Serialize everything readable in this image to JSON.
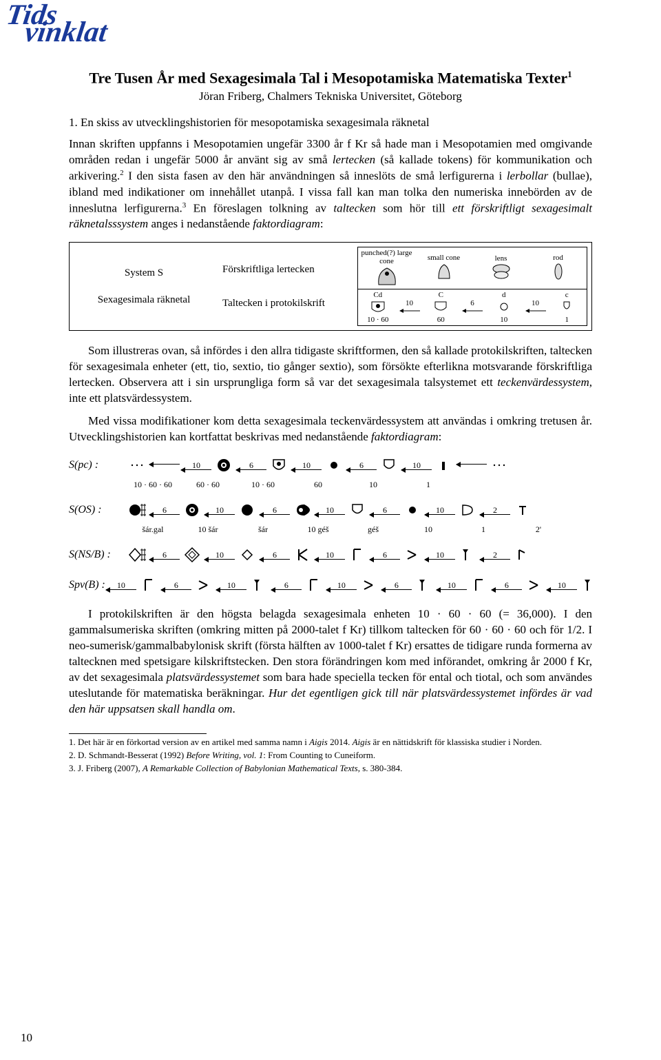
{
  "logo": {
    "line1": "Tids",
    "line2": "vinklat",
    "color": "#1a3a9a"
  },
  "title": "Tre Tusen År med Sexagesimala Tal i Mesopotamiska Matematiska Texter",
  "title_footnote_mark": "1",
  "author": "Jöran Friberg, Chalmers Tekniska Universitet, Göteborg",
  "section1_number": "1.",
  "section1_title": "En skiss av utvecklingshistorien för mesopotamiska sexagesimala räknetal",
  "para1_a": "Innan skriften uppfanns i Mesopotamien ungefär 3300 år f Kr så hade man i Mesopotamien med omgivande områden redan i ungefär 5000 år använt sig av små ",
  "para1_b_it": "lertecken",
  "para1_c": " (så kallade tokens) för kommunikation och arkivering.",
  "para1_fn2": "2",
  "para1_d": " I den sista fasen av den här användningen så inneslöts de små lerfigurerna i ",
  "para1_e_it": "lerbollar",
  "para1_f": " (bullae), ibland med indikationer om innehållet utanpå. I vissa fall kan man tolka den numeriska innebörden av de inneslutna lerfigurerna.",
  "para1_fn3": "3",
  "para1_g": " En föreslagen tolkning av ",
  "para1_h_it": "taltecken",
  "para1_i": " som hör till ",
  "para1_j_it": "ett förskriftligt sexagesimalt räknetalsssystem",
  "para1_k": " anges i nedanstående ",
  "para1_l_it": "faktordiagram",
  "para1_m": ":",
  "sysbox": {
    "left_label": "System S",
    "left_sub": "Sexagesimala räknetal",
    "mid_top": "Förskriftliga lertecken",
    "mid_bot": "Taltecken i protokilskrift",
    "top_headers": [
      "punched(?) large cone",
      "small cone",
      "lens",
      "rod"
    ],
    "proto_headers": [
      "Cd",
      "C",
      "d",
      "c"
    ],
    "proto_factors_top": [
      "10",
      "6",
      "10"
    ],
    "proto_bottom": [
      "10 · 60",
      "60",
      "10",
      "1"
    ]
  },
  "para2": "Som illustreras ovan, så infördes i den allra tidigaste skriftformen, den så kallade protokilskriften, taltecken för sexagesimala enheter (ett, tio, sextio, tio gånger sextio), som försökte efterlikna motsvarande förskriftliga lertecken. Observera att i sin ursprungliga form så var det sexagesimala talsystemet ett ",
  "para2_it": "teckenvärdessystem",
  "para2_b": ", inte ett platsvärdessystem.",
  "para3_a": "Med vissa modifikationer kom detta sexagesimala teckenvärdessystem att användas i omkring tretusen år. Utvecklingshistorien kan kortfattat beskrivas med nedanstående ",
  "para3_it": "faktordiagram",
  "para3_b": ":",
  "chart": {
    "rows": [
      {
        "label": "S(pc) :",
        "leading_dots": true,
        "segments": [
          {
            "f": "10",
            "sym": "bullseye"
          },
          {
            "f": "6",
            "sym": "dot-in-cup"
          },
          {
            "f": "10",
            "sym": "small-dot"
          },
          {
            "f": "6",
            "sym": "cup"
          },
          {
            "f": "10",
            "sym": "short-bar"
          }
        ],
        "trailing": {
          "f": "",
          "sym": "dots"
        },
        "sub": [
          "10 · 60 · 60",
          "60 · 60",
          "10 · 60",
          "60",
          "10",
          "1"
        ]
      },
      {
        "label": "S(OS) :",
        "segments": [
          {
            "f": "",
            "sym": "black-grid"
          },
          {
            "f": "6",
            "sym": "bullseye"
          },
          {
            "f": "10",
            "sym": "black-dot"
          },
          {
            "f": "6",
            "sym": "black-drop"
          },
          {
            "f": "10",
            "sym": "cup-white"
          },
          {
            "f": "6",
            "sym": "small-dot"
          },
          {
            "f": "10",
            "sym": "open-d"
          },
          {
            "f": "2",
            "sym": "small-mark"
          }
        ],
        "sub": [
          "šár.gal",
          "10 šár",
          "šár",
          "10 géš",
          "géš",
          "10",
          "1",
          "2'"
        ]
      },
      {
        "label": "S(NS/B) :",
        "segments": [
          {
            "f": "",
            "sym": "diamond-grid"
          },
          {
            "f": "6",
            "sym": "diamond"
          },
          {
            "f": "10",
            "sym": "diamond-small"
          },
          {
            "f": "6",
            "sym": "k-mark"
          },
          {
            "f": "10",
            "sym": "hook-up"
          },
          {
            "f": "6",
            "sym": "angle"
          },
          {
            "f": "10",
            "sym": "hook"
          },
          {
            "f": "2",
            "sym": "tick"
          }
        ]
      },
      {
        "label": "Spv(B) :",
        "segments": [
          {
            "f": "10",
            "sym": "hook-up"
          },
          {
            "f": "6",
            "sym": "angle"
          },
          {
            "f": "10",
            "sym": "hook"
          },
          {
            "f": "6",
            "sym": "hook-up"
          },
          {
            "f": "10",
            "sym": "angle"
          },
          {
            "f": "6",
            "sym": "hook"
          },
          {
            "f": "10",
            "sym": "hook-up"
          },
          {
            "f": "6",
            "sym": "angle"
          },
          {
            "f": "10",
            "sym": "hook"
          }
        ]
      }
    ]
  },
  "para4_a": "I protokilskriften är den högsta belagda sexagesimala enheten 10 · 60 · 60 (= 36,000). I den gammalsumeriska skriften (omkring mitten på 2000-talet f Kr) tillkom taltecken för 60 · 60 · 60 och för 1/2. I neo-sumerisk/gammalbabylonisk skrift (första hälften av 1000-talet f Kr) ersattes de tidigare runda formerna av taltecknen med spetsigare kilskriftstecken. Den stora förändringen kom med införandet, omkring år 2000 f Kr, av det sexagesimala ",
  "para4_it": "platsvärdessystemet",
  "para4_b": " som bara hade speciella tecken för ental och tiotal, och som användes uteslutande för matematiska beräkningar. ",
  "para4_it2": "Hur det egentligen gick till när platsvärdessystemet infördes är vad den här uppsatsen skall handla om",
  "para4_c": ".",
  "footnotes": [
    "1. Det här är en förkortad version av en artikel med samma namn i Aigis 2014. Aigis är en nättidskrift för klassiska studier i Norden.",
    "2. D. Schmandt-Besserat (1992) Before Writing, vol. 1: From Counting to Cuneiform.",
    "3. J. Friberg (2007), A Remarkable Collection of Babylonian Mathematical Texts, s. 380-384."
  ],
  "page_number": "10",
  "colors": {
    "ink": "#000000",
    "bg": "#ffffff",
    "logo": "#1a3a9a"
  },
  "fonts": {
    "body_family": "Times New Roman",
    "body_size_pt": 12,
    "title_size_pt": 16,
    "footnote_size_pt": 9
  }
}
